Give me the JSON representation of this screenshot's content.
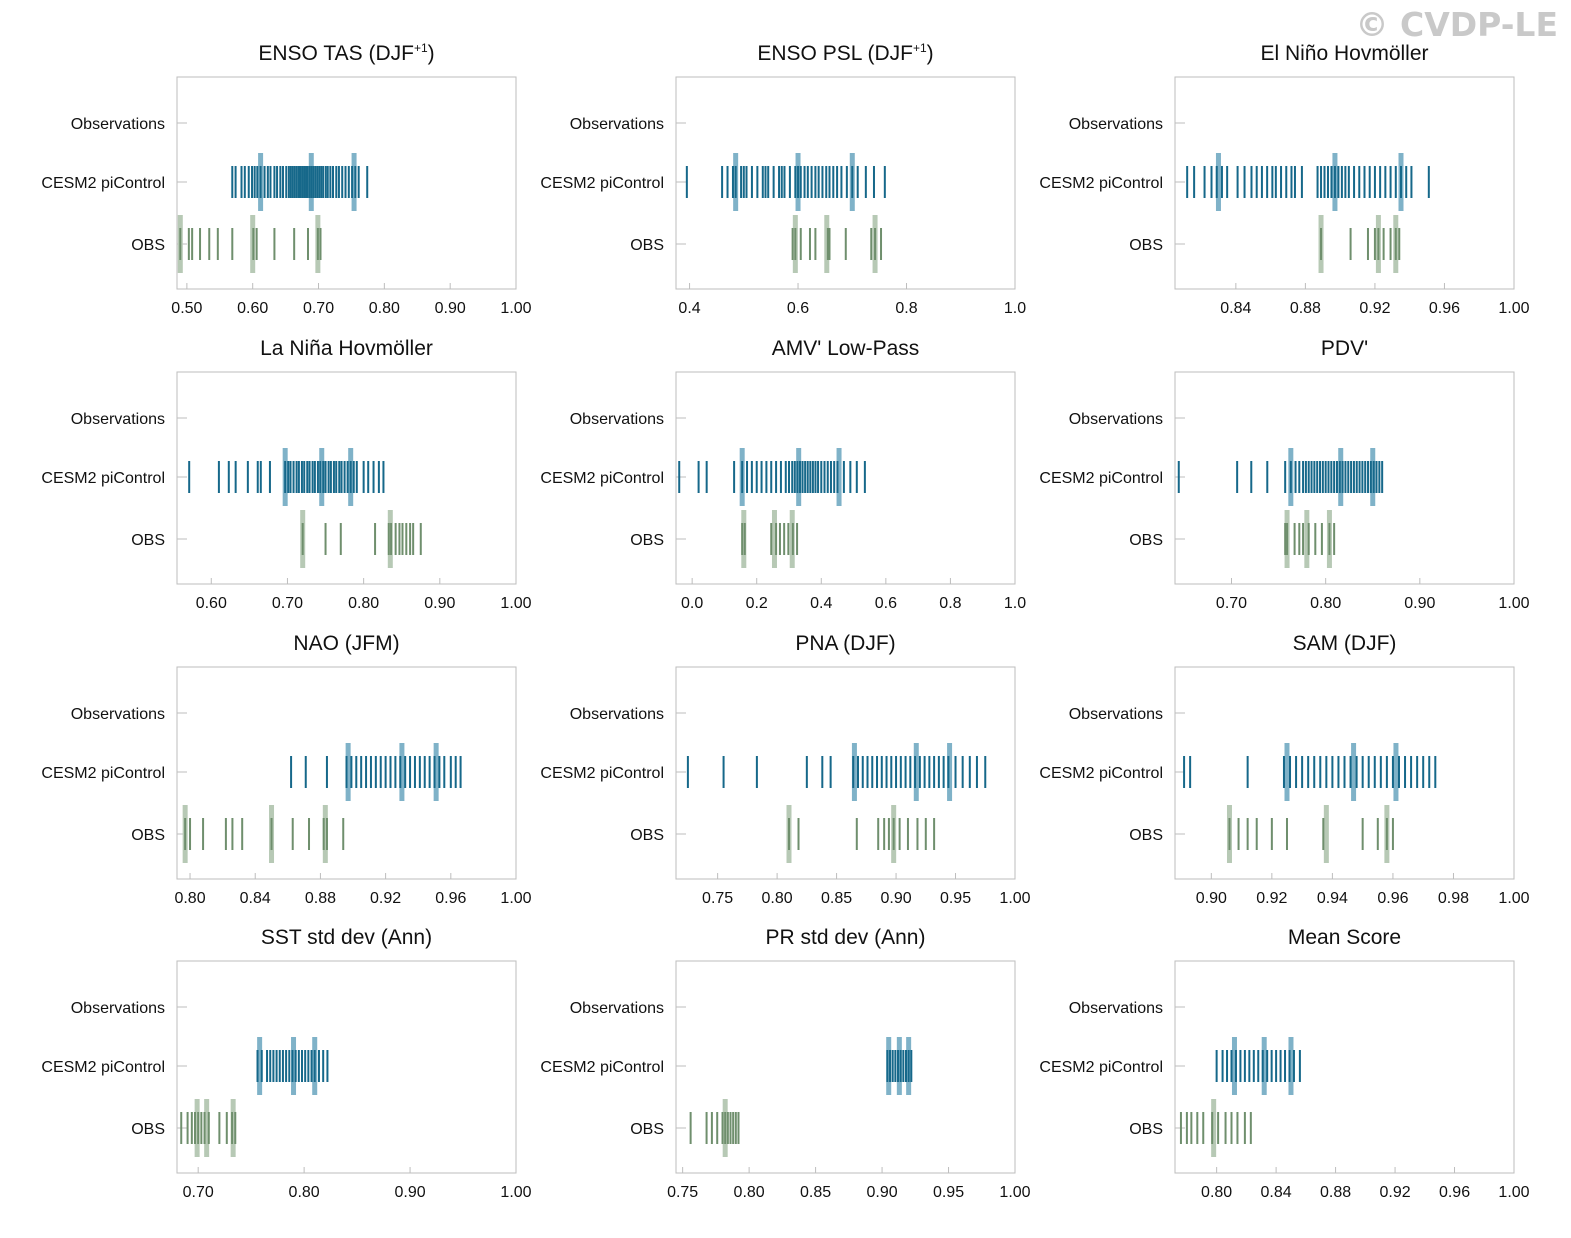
{
  "watermark": "© CVDP-LE",
  "row_labels": [
    "Observations",
    "CESM2 piControl",
    "OBS"
  ],
  "colors": {
    "model": "#16688a",
    "model_highlight": "#7fb2c8",
    "obs": "#6f8f6d",
    "obs_highlight": "#b7c9b5",
    "axis": "#bdbdbd",
    "text": "#111111"
  },
  "chart_data": [
    {
      "type": "strip",
      "title": "ENSO TAS (DJF",
      "title_sup": "+1",
      "title_suffix": ")",
      "xlim": [
        0.485,
        1.0
      ],
      "ticks": [
        0.5,
        0.6,
        0.7,
        0.8,
        0.9,
        1.0
      ],
      "tick_labels": [
        "0.50",
        "0.60",
        "0.70",
        "0.80",
        "0.90",
        "1.00"
      ],
      "model_values": [
        0.569,
        0.574,
        0.583,
        0.588,
        0.594,
        0.599,
        0.603,
        0.607,
        0.612,
        0.618,
        0.623,
        0.627,
        0.633,
        0.637,
        0.642,
        0.646,
        0.651,
        0.655,
        0.658,
        0.661,
        0.664,
        0.667,
        0.67,
        0.672,
        0.675,
        0.678,
        0.681,
        0.683,
        0.686,
        0.689,
        0.692,
        0.695,
        0.698,
        0.701,
        0.704,
        0.707,
        0.711,
        0.714,
        0.718,
        0.722,
        0.727,
        0.731,
        0.736,
        0.741,
        0.746,
        0.751,
        0.756,
        0.761,
        0.774
      ],
      "model_highlights": [
        0.612,
        0.689,
        0.754
      ],
      "obs_values": [
        0.49,
        0.503,
        0.508,
        0.52,
        0.534,
        0.547,
        0.569,
        0.601,
        0.606,
        0.633,
        0.663,
        0.684,
        0.699,
        0.703
      ],
      "obs_highlights": [
        0.49,
        0.6,
        0.699
      ]
    },
    {
      "type": "strip",
      "title": "ENSO PSL (DJF",
      "title_sup": "+1",
      "title_suffix": ")",
      "xlim": [
        0.375,
        1.0
      ],
      "ticks": [
        0.4,
        0.6,
        0.8,
        1.0
      ],
      "tick_labels": [
        "0.4",
        "0.6",
        "0.8",
        "1.0"
      ],
      "model_values": [
        0.395,
        0.46,
        0.47,
        0.48,
        0.485,
        0.495,
        0.5,
        0.505,
        0.515,
        0.525,
        0.535,
        0.54,
        0.545,
        0.555,
        0.565,
        0.57,
        0.575,
        0.585,
        0.595,
        0.6,
        0.605,
        0.612,
        0.618,
        0.625,
        0.632,
        0.638,
        0.645,
        0.652,
        0.658,
        0.665,
        0.672,
        0.68,
        0.69,
        0.7,
        0.71,
        0.725,
        0.74,
        0.76
      ],
      "model_highlights": [
        0.485,
        0.6,
        0.7
      ],
      "obs_values": [
        0.59,
        0.595,
        0.605,
        0.622,
        0.632,
        0.655,
        0.658,
        0.688,
        0.735,
        0.742,
        0.753
      ],
      "obs_highlights": [
        0.595,
        0.653,
        0.742
      ]
    },
    {
      "type": "strip",
      "title": "El Niño Hovmöller",
      "xlim": [
        0.805,
        1.0
      ],
      "ticks": [
        0.84,
        0.88,
        0.92,
        0.96,
        1.0
      ],
      "tick_labels": [
        "0.84",
        "0.88",
        "0.92",
        "0.96",
        "1.00"
      ],
      "model_values": [
        0.812,
        0.816,
        0.822,
        0.826,
        0.829,
        0.832,
        0.835,
        0.841,
        0.845,
        0.849,
        0.852,
        0.855,
        0.858,
        0.861,
        0.863,
        0.866,
        0.869,
        0.872,
        0.874,
        0.878,
        0.887,
        0.889,
        0.891,
        0.893,
        0.895,
        0.897,
        0.899,
        0.901,
        0.903,
        0.905,
        0.908,
        0.911,
        0.914,
        0.917,
        0.92,
        0.923,
        0.926,
        0.929,
        0.932,
        0.935,
        0.938,
        0.941,
        0.951
      ],
      "model_highlights": [
        0.83,
        0.897,
        0.935
      ],
      "obs_values": [
        0.889,
        0.906,
        0.916,
        0.92,
        0.922,
        0.925,
        0.929,
        0.932,
        0.934
      ],
      "obs_highlights": [
        0.889,
        0.922,
        0.932
      ]
    },
    {
      "type": "strip",
      "title": "La Niña Hovmöller",
      "xlim": [
        0.555,
        1.0
      ],
      "ticks": [
        0.6,
        0.7,
        0.8,
        0.9,
        1.0
      ],
      "tick_labels": [
        "0.60",
        "0.70",
        "0.80",
        "0.90",
        "1.00"
      ],
      "model_values": [
        0.571,
        0.61,
        0.623,
        0.632,
        0.648,
        0.661,
        0.665,
        0.677,
        0.697,
        0.701,
        0.704,
        0.708,
        0.712,
        0.715,
        0.719,
        0.722,
        0.726,
        0.729,
        0.733,
        0.736,
        0.74,
        0.743,
        0.747,
        0.75,
        0.754,
        0.757,
        0.761,
        0.764,
        0.768,
        0.771,
        0.775,
        0.779,
        0.783,
        0.787,
        0.791,
        0.8,
        0.806,
        0.813,
        0.82,
        0.826
      ],
      "model_highlights": [
        0.697,
        0.745,
        0.783
      ],
      "obs_values": [
        0.72,
        0.75,
        0.77,
        0.815,
        0.833,
        0.836,
        0.842,
        0.847,
        0.851,
        0.856,
        0.861,
        0.865,
        0.875
      ],
      "obs_highlights": [
        0.72,
        0.835
      ]
    },
    {
      "type": "strip",
      "title": "AMV' Low-Pass",
      "xlim": [
        -0.05,
        1.0
      ],
      "ticks": [
        0.0,
        0.2,
        0.4,
        0.6,
        0.8,
        1.0
      ],
      "tick_labels": [
        "0.0",
        "0.2",
        "0.4",
        "0.6",
        "0.8",
        "1.0"
      ],
      "model_values": [
        -0.04,
        0.02,
        0.045,
        0.13,
        0.155,
        0.17,
        0.185,
        0.2,
        0.215,
        0.23,
        0.245,
        0.26,
        0.275,
        0.29,
        0.3,
        0.31,
        0.318,
        0.326,
        0.334,
        0.342,
        0.35,
        0.358,
        0.366,
        0.374,
        0.382,
        0.39,
        0.4,
        0.41,
        0.42,
        0.43,
        0.44,
        0.45,
        0.47,
        0.49,
        0.51,
        0.535
      ],
      "model_highlights": [
        0.155,
        0.33,
        0.455
      ],
      "obs_values": [
        0.155,
        0.163,
        0.245,
        0.26,
        0.272,
        0.285,
        0.298,
        0.312,
        0.325
      ],
      "obs_highlights": [
        0.16,
        0.255,
        0.31
      ]
    },
    {
      "type": "strip",
      "title": "PDV'",
      "xlim": [
        0.64,
        1.0
      ],
      "ticks": [
        0.7,
        0.8,
        0.9,
        1.0
      ],
      "tick_labels": [
        "0.70",
        "0.80",
        "0.90",
        "1.00"
      ],
      "model_values": [
        0.644,
        0.706,
        0.721,
        0.738,
        0.757,
        0.763,
        0.768,
        0.772,
        0.776,
        0.779,
        0.782,
        0.785,
        0.788,
        0.791,
        0.794,
        0.797,
        0.8,
        0.803,
        0.806,
        0.809,
        0.812,
        0.815,
        0.818,
        0.821,
        0.824,
        0.827,
        0.83,
        0.833,
        0.836,
        0.839,
        0.842,
        0.845,
        0.848,
        0.851,
        0.854,
        0.857,
        0.86
      ],
      "model_highlights": [
        0.763,
        0.816,
        0.85
      ],
      "obs_values": [
        0.757,
        0.759,
        0.767,
        0.772,
        0.776,
        0.782,
        0.789,
        0.796,
        0.804,
        0.809
      ],
      "obs_highlights": [
        0.759,
        0.78,
        0.804
      ]
    },
    {
      "type": "strip",
      "title": "NAO (JFM)",
      "xlim": [
        0.792,
        1.0
      ],
      "ticks": [
        0.8,
        0.84,
        0.88,
        0.92,
        0.96,
        1.0
      ],
      "tick_labels": [
        "0.80",
        "0.84",
        "0.88",
        "0.92",
        "0.96",
        "1.00"
      ],
      "model_values": [
        0.862,
        0.871,
        0.884,
        0.896,
        0.899,
        0.902,
        0.905,
        0.908,
        0.911,
        0.914,
        0.917,
        0.92,
        0.923,
        0.926,
        0.929,
        0.932,
        0.935,
        0.938,
        0.941,
        0.944,
        0.947,
        0.95,
        0.953,
        0.956,
        0.96,
        0.963,
        0.966
      ],
      "model_highlights": [
        0.897,
        0.93,
        0.951
      ],
      "obs_values": [
        0.797,
        0.8,
        0.808,
        0.822,
        0.826,
        0.832,
        0.85,
        0.863,
        0.873,
        0.882,
        0.884,
        0.894
      ],
      "obs_highlights": [
        0.797,
        0.85,
        0.883
      ]
    },
    {
      "type": "strip",
      "title": "PNA (DJF)",
      "xlim": [
        0.715,
        1.0
      ],
      "ticks": [
        0.75,
        0.8,
        0.85,
        0.9,
        0.95,
        1.0
      ],
      "tick_labels": [
        "0.75",
        "0.80",
        "0.85",
        "0.90",
        "0.95",
        "1.00"
      ],
      "model_values": [
        0.725,
        0.755,
        0.783,
        0.825,
        0.838,
        0.845,
        0.864,
        0.868,
        0.872,
        0.876,
        0.88,
        0.884,
        0.888,
        0.892,
        0.896,
        0.9,
        0.904,
        0.908,
        0.912,
        0.916,
        0.92,
        0.924,
        0.928,
        0.932,
        0.936,
        0.94,
        0.944,
        0.95,
        0.956,
        0.962,
        0.968,
        0.975
      ],
      "model_highlights": [
        0.865,
        0.917,
        0.945
      ],
      "obs_values": [
        0.81,
        0.818,
        0.867,
        0.885,
        0.89,
        0.894,
        0.898,
        0.903,
        0.91,
        0.918,
        0.925,
        0.932
      ],
      "obs_highlights": [
        0.81,
        0.898
      ]
    },
    {
      "type": "strip",
      "title": "SAM (DJF)",
      "xlim": [
        0.888,
        1.0
      ],
      "ticks": [
        0.9,
        0.92,
        0.94,
        0.96,
        0.98,
        1.0
      ],
      "tick_labels": [
        "0.90",
        "0.92",
        "0.94",
        "0.96",
        "0.98",
        "1.00"
      ],
      "model_values": [
        0.891,
        0.893,
        0.912,
        0.924,
        0.926,
        0.928,
        0.93,
        0.932,
        0.934,
        0.936,
        0.938,
        0.94,
        0.942,
        0.944,
        0.946,
        0.948,
        0.95,
        0.952,
        0.954,
        0.956,
        0.958,
        0.96,
        0.962,
        0.964,
        0.966,
        0.968,
        0.97,
        0.972,
        0.974
      ],
      "model_highlights": [
        0.925,
        0.947,
        0.961
      ],
      "obs_values": [
        0.906,
        0.909,
        0.912,
        0.915,
        0.92,
        0.925,
        0.937,
        0.95,
        0.955,
        0.958,
        0.96
      ],
      "obs_highlights": [
        0.906,
        0.938,
        0.958
      ]
    },
    {
      "type": "strip",
      "title": "SST std dev (Ann)",
      "xlim": [
        0.68,
        1.0
      ],
      "ticks": [
        0.7,
        0.8,
        0.9,
        1.0
      ],
      "tick_labels": [
        "0.70",
        "0.80",
        "0.90",
        "1.00"
      ],
      "model_values": [
        0.756,
        0.76,
        0.765,
        0.768,
        0.771,
        0.774,
        0.777,
        0.78,
        0.783,
        0.786,
        0.789,
        0.792,
        0.795,
        0.798,
        0.801,
        0.804,
        0.807,
        0.81,
        0.814,
        0.818,
        0.822
      ],
      "model_highlights": [
        0.758,
        0.79,
        0.81
      ],
      "obs_values": [
        0.684,
        0.69,
        0.694,
        0.697,
        0.7,
        0.703,
        0.706,
        0.71,
        0.72,
        0.727,
        0.732,
        0.735
      ],
      "obs_highlights": [
        0.699,
        0.708,
        0.733
      ]
    },
    {
      "type": "strip",
      "title": "PR std dev (Ann)",
      "xlim": [
        0.745,
        1.0
      ],
      "ticks": [
        0.75,
        0.8,
        0.85,
        0.9,
        0.95,
        1.0
      ],
      "tick_labels": [
        "0.75",
        "0.80",
        "0.85",
        "0.90",
        "0.95",
        "1.00"
      ],
      "model_values": [
        0.904,
        0.906,
        0.908,
        0.91,
        0.912,
        0.914,
        0.916,
        0.918,
        0.92,
        0.922
      ],
      "model_highlights": [
        0.905,
        0.913,
        0.92
      ],
      "obs_values": [
        0.756,
        0.768,
        0.772,
        0.776,
        0.78,
        0.782,
        0.784,
        0.786,
        0.788,
        0.79,
        0.792
      ],
      "obs_highlights": [
        0.782
      ]
    },
    {
      "type": "strip",
      "title": "Mean Score",
      "xlim": [
        0.772,
        1.0
      ],
      "ticks": [
        0.8,
        0.84,
        0.88,
        0.92,
        0.96,
        1.0
      ],
      "tick_labels": [
        "0.80",
        "0.84",
        "0.88",
        "0.92",
        "0.96",
        "1.00"
      ],
      "model_values": [
        0.8,
        0.804,
        0.807,
        0.81,
        0.813,
        0.816,
        0.819,
        0.822,
        0.825,
        0.828,
        0.831,
        0.834,
        0.837,
        0.84,
        0.843,
        0.846,
        0.849,
        0.852,
        0.856
      ],
      "model_highlights": [
        0.812,
        0.832,
        0.85
      ],
      "obs_values": [
        0.776,
        0.78,
        0.783,
        0.787,
        0.791,
        0.797,
        0.801,
        0.806,
        0.81,
        0.814,
        0.819,
        0.823
      ],
      "obs_highlights": [
        0.798
      ]
    }
  ]
}
